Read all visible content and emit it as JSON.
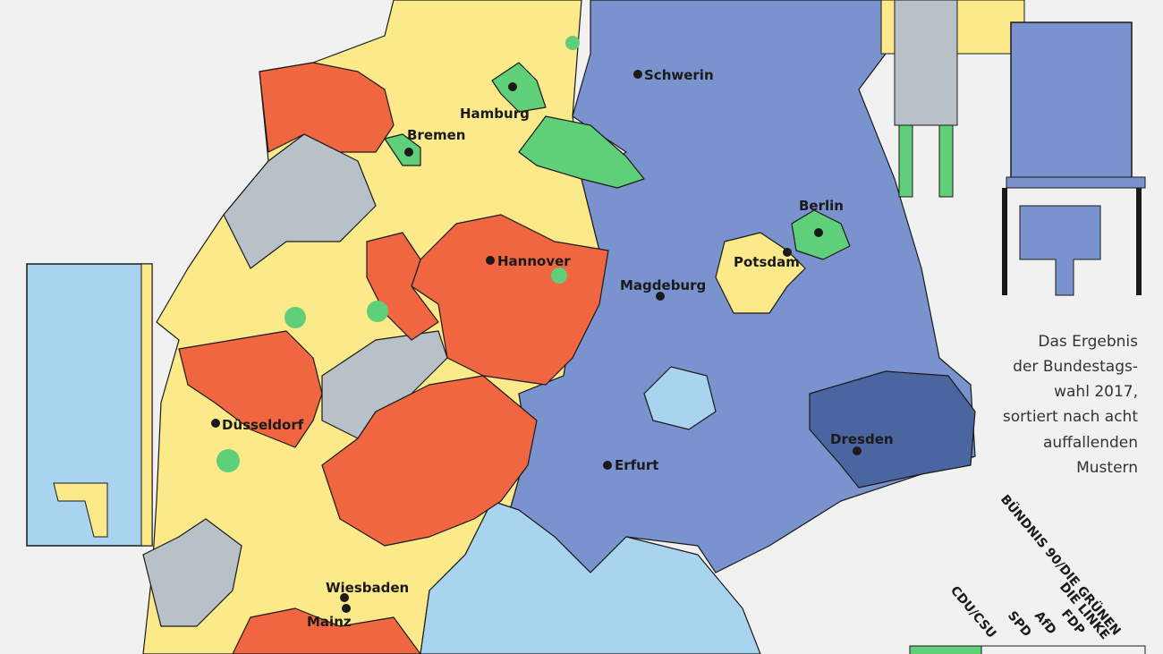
{
  "cities": [
    "Schwerin",
    "Hamburg",
    "Bremen",
    "Berlin",
    "Hannover",
    "Potsdam",
    "Magdeburg",
    "Düsseldorf",
    "Dresden",
    "Erfurt",
    "Wiesbaden",
    "Mainz"
  ],
  "description": {
    "lines": [
      "Das Ergebnis",
      "der Bundestags-",
      "wahl 2017,",
      "sortiert nach acht",
      "auffallenden",
      "Mustern"
    ]
  },
  "legend": {
    "parties": [
      "CDU/CSU",
      "SPD",
      "AfD",
      "FDP",
      "DIE LINKE",
      "BÜNDNIS 90/DIE GRÜNEN"
    ]
  }
}
